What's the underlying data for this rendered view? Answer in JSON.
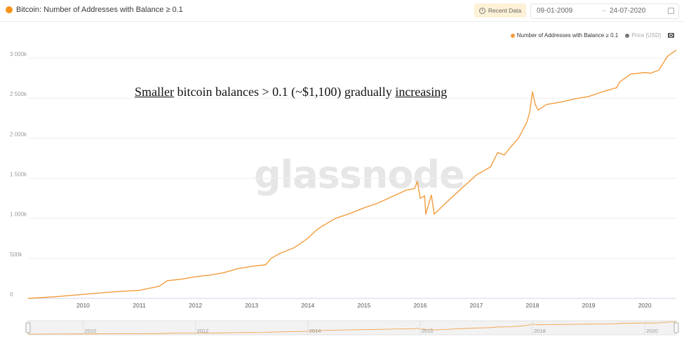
{
  "header": {
    "title": "Bitcoin: Number of Addresses with Balance ≥ 0.1",
    "recent_label": "Recent Data",
    "date_from": "09-01-2009",
    "date_arrow": "→",
    "date_to": "24-07-2020"
  },
  "legend": {
    "series1": "Number of Addresses with Balance ≥ 0.1",
    "series2": "Price [USD]"
  },
  "watermark": "glassnode",
  "annotation": {
    "part1": "Smaller",
    "part2": " bitcoin balances > 0.1 (~$1,100) gradually ",
    "part3": "increasing"
  },
  "colors": {
    "series": "#f39c3c",
    "brand": "#f7931a"
  },
  "chart_data": {
    "type": "line",
    "title": "Bitcoin: Number of Addresses with Balance ≥ 0.1",
    "xlabel": "",
    "ylabel": "",
    "xlim": [
      2009.02,
      2020.56
    ],
    "ylim": [
      0,
      3000000
    ],
    "y_ticks": [
      0,
      500000,
      1000000,
      1500000,
      2000000,
      2500000,
      3000000
    ],
    "y_tick_labels": [
      "0",
      "500k",
      "1 000k",
      "1 500k",
      "2 000k",
      "2 500k",
      "3 000k"
    ],
    "x_ticks": [
      2010,
      2011,
      2012,
      2013,
      2014,
      2015,
      2016,
      2017,
      2018,
      2019,
      2020
    ],
    "x_tick_labels": [
      "2010",
      "2011",
      "2012",
      "2013",
      "2014",
      "2015",
      "2016",
      "2017",
      "2018",
      "2019",
      "2020"
    ],
    "navigator_labels": [
      "2010",
      "2012",
      "2014",
      "2016",
      "2018",
      "2020"
    ],
    "grid": "horizontal",
    "legend_position": "top-right",
    "series": [
      {
        "name": "Number of Addresses with Balance ≥ 0.1",
        "x": [
          2009.02,
          2009.5,
          2010.0,
          2010.5,
          2011.0,
          2011.35,
          2011.5,
          2011.75,
          2012.0,
          2012.25,
          2012.5,
          2012.75,
          2013.0,
          2013.25,
          2013.35,
          2013.5,
          2013.75,
          2013.9,
          2014.0,
          2014.15,
          2014.25,
          2014.4,
          2014.5,
          2014.75,
          2015.0,
          2015.25,
          2015.5,
          2015.75,
          2015.9,
          2015.95,
          2016.0,
          2016.08,
          2016.1,
          2016.2,
          2016.23,
          2016.25,
          2016.5,
          2016.75,
          2017.0,
          2017.25,
          2017.38,
          2017.5,
          2017.6,
          2017.75,
          2017.9,
          2017.95,
          2018.0,
          2018.05,
          2018.1,
          2018.25,
          2018.5,
          2018.75,
          2019.0,
          2019.25,
          2019.5,
          2019.55,
          2019.75,
          2020.0,
          2020.1,
          2020.25,
          2020.4,
          2020.56
        ],
        "values": [
          0,
          20000,
          50000,
          80000,
          100000,
          150000,
          220000,
          240000,
          270000,
          290000,
          320000,
          370000,
          400000,
          420000,
          500000,
          560000,
          630000,
          700000,
          750000,
          850000,
          900000,
          960000,
          1000000,
          1060000,
          1130000,
          1190000,
          1270000,
          1350000,
          1370000,
          1460000,
          1250000,
          1280000,
          1050000,
          1290000,
          1150000,
          1050000,
          1220000,
          1380000,
          1540000,
          1640000,
          1820000,
          1790000,
          1880000,
          2000000,
          2200000,
          2320000,
          2580000,
          2420000,
          2350000,
          2420000,
          2450000,
          2490000,
          2520000,
          2580000,
          2630000,
          2700000,
          2800000,
          2820000,
          2810000,
          2850000,
          3020000,
          3100000
        ]
      }
    ]
  }
}
